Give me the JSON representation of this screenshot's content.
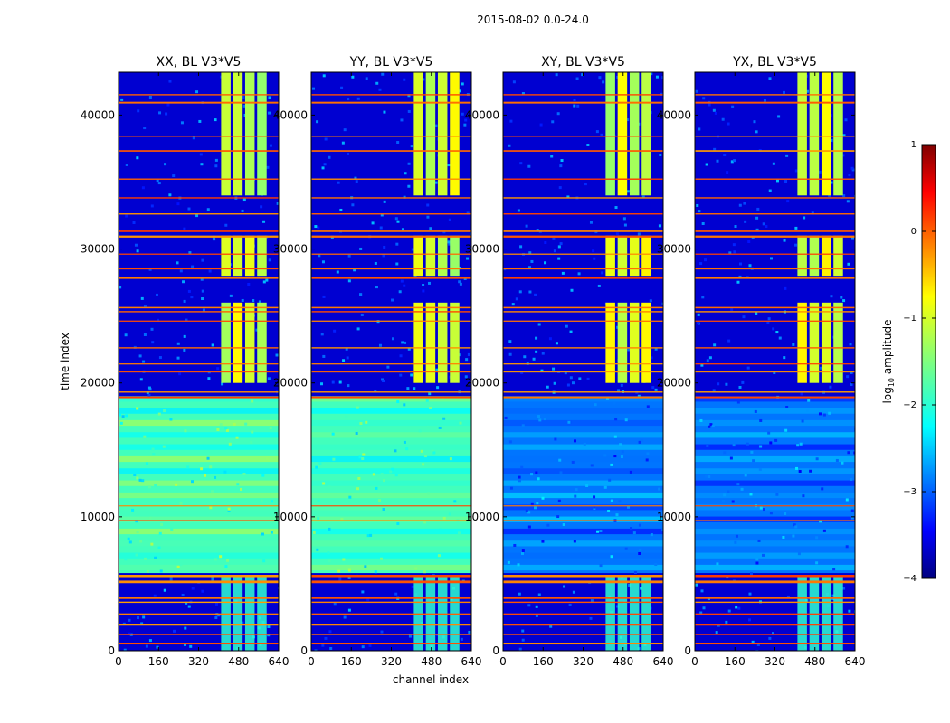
{
  "figure": {
    "suptitle": "2015-08-02 0.0-24.0",
    "xlabel": "channel index",
    "ylabel": "time index"
  },
  "chart_data": [
    {
      "type": "heatmap",
      "title": "XX, BL V3*V5",
      "xlim": [
        0,
        640
      ],
      "ylim": [
        0,
        43200
      ],
      "xticks": [
        "0",
        "160",
        "320",
        "480",
        "640"
      ],
      "yticks": [
        "0",
        "10000",
        "20000",
        "30000",
        "40000"
      ],
      "lower_level": -1.8,
      "bright_channel_range": [
        410,
        600
      ]
    },
    {
      "type": "heatmap",
      "title": "YY, BL V3*V5",
      "xlim": [
        0,
        640
      ],
      "ylim": [
        0,
        43200
      ],
      "xticks": [
        "0",
        "160",
        "320",
        "480",
        "640"
      ],
      "yticks": [
        "0",
        "10000",
        "20000",
        "30000",
        "40000"
      ],
      "lower_level": -1.8,
      "bright_channel_range": [
        410,
        600
      ]
    },
    {
      "type": "heatmap",
      "title": "XY, BL V3*V5",
      "xlim": [
        0,
        640
      ],
      "ylim": [
        0,
        43200
      ],
      "xticks": [
        "0",
        "160",
        "320",
        "480",
        "640"
      ],
      "yticks": [
        "0",
        "10000",
        "20000",
        "30000",
        "40000"
      ],
      "lower_level": -2.8,
      "bright_channel_range": [
        410,
        600
      ]
    },
    {
      "type": "heatmap",
      "title": "YX, BL V3*V5",
      "xlim": [
        0,
        640
      ],
      "ylim": [
        0,
        43200
      ],
      "xticks": [
        "0",
        "160",
        "320",
        "480",
        "640"
      ],
      "yticks": [
        "0",
        "10000",
        "20000",
        "30000",
        "40000"
      ],
      "lower_level": -2.8,
      "bright_channel_range": [
        410,
        600
      ]
    }
  ],
  "colorbar": {
    "label_prefix": "log",
    "label_sub": "10",
    "label_suffix": " amplitude",
    "range": [
      -4,
      1
    ],
    "ticks": [
      "1",
      "0",
      "−1",
      "−2",
      "−3",
      "−4"
    ],
    "colors": [
      "#00007f",
      "#0000ff",
      "#007fff",
      "#00ffff",
      "#7fff7f",
      "#ffff00",
      "#ff7f00",
      "#ff0000",
      "#7f0000"
    ]
  }
}
